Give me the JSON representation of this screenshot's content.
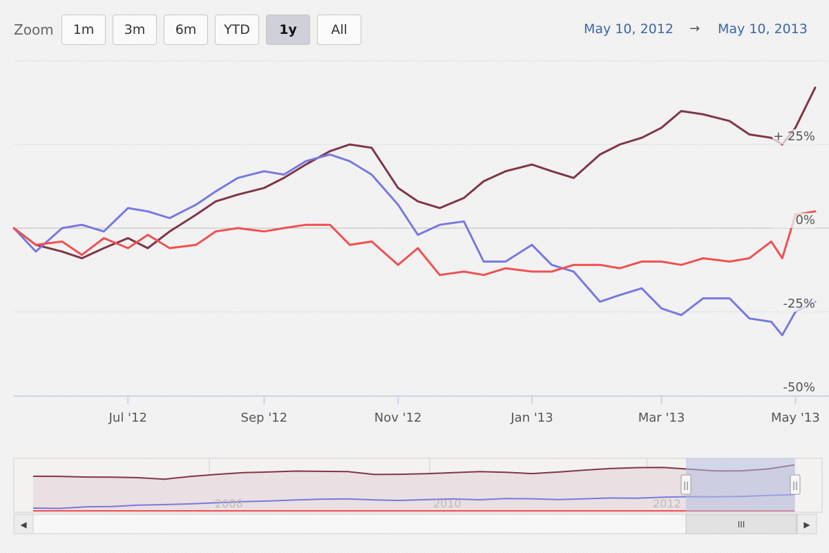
{
  "toolbar": {
    "zoom_label": "Zoom",
    "buttons": [
      "1m",
      "3m",
      "6m",
      "YTD",
      "1y",
      "All"
    ],
    "active": "1y"
  },
  "range": {
    "from": "May 10, 2012",
    "arrow": "→",
    "to": "May 10, 2013"
  },
  "colors": {
    "series_a": "#7f3546",
    "series_b": "#7878e0",
    "series_c": "#f05050",
    "gridline": "#d8d8d8",
    "axis": "#c6d4ec",
    "navigator_mask": "#b6bfe2"
  },
  "chart_data": {
    "type": "line",
    "xlabel": "",
    "ylabel": "",
    "x_range": [
      "2012-05-10",
      "2013-05-10"
    ],
    "ylim": [
      -50,
      50
    ],
    "y_ticks": [
      {
        "value": 25,
        "label": "+ 25%"
      },
      {
        "value": 0,
        "label": "0%"
      },
      {
        "value": -25,
        "label": "-25%"
      },
      {
        "value": -50,
        "label": "-50%"
      }
    ],
    "x_ticks": [
      {
        "date": "2012-07-01",
        "label": "Jul '12"
      },
      {
        "date": "2012-09-01",
        "label": "Sep '12"
      },
      {
        "date": "2012-11-01",
        "label": "Nov '12"
      },
      {
        "date": "2013-01-01",
        "label": "Jan '13"
      },
      {
        "date": "2013-03-01",
        "label": "Mar '13"
      },
      {
        "date": "2013-05-01",
        "label": "May '13"
      }
    ],
    "grid": true,
    "series": [
      {
        "color": "#7f3546",
        "x": [
          "2012-05-10",
          "2012-05-20",
          "2012-06-01",
          "2012-06-10",
          "2012-06-20",
          "2012-07-01",
          "2012-07-10",
          "2012-07-20",
          "2012-08-01",
          "2012-08-10",
          "2012-08-20",
          "2012-09-01",
          "2012-09-10",
          "2012-09-20",
          "2012-10-01",
          "2012-10-10",
          "2012-10-20",
          "2012-11-01",
          "2012-11-10",
          "2012-11-20",
          "2012-12-01",
          "2012-12-10",
          "2012-12-20",
          "2013-01-01",
          "2013-01-10",
          "2013-01-20",
          "2013-02-01",
          "2013-02-10",
          "2013-02-20",
          "2013-03-01",
          "2013-03-10",
          "2013-03-20",
          "2013-04-01",
          "2013-04-10",
          "2013-04-20",
          "2013-04-25",
          "2013-05-01",
          "2013-05-10"
        ],
        "values": [
          0,
          -5,
          -7,
          -9,
          -6,
          -3,
          -6,
          -1,
          4,
          8,
          10,
          12,
          15,
          19,
          23,
          25,
          24,
          12,
          8,
          6,
          9,
          14,
          17,
          19,
          17,
          15,
          22,
          25,
          27,
          30,
          35,
          34,
          32,
          28,
          27,
          25,
          30,
          42
        ]
      },
      {
        "color": "#7878e0",
        "x": [
          "2012-05-10",
          "2012-05-20",
          "2012-06-01",
          "2012-06-10",
          "2012-06-20",
          "2012-07-01",
          "2012-07-10",
          "2012-07-20",
          "2012-08-01",
          "2012-08-10",
          "2012-08-20",
          "2012-09-01",
          "2012-09-10",
          "2012-09-20",
          "2012-10-01",
          "2012-10-10",
          "2012-10-20",
          "2012-11-01",
          "2012-11-10",
          "2012-11-20",
          "2012-12-01",
          "2012-12-10",
          "2012-12-20",
          "2013-01-01",
          "2013-01-10",
          "2013-01-20",
          "2013-02-01",
          "2013-02-10",
          "2013-02-20",
          "2013-03-01",
          "2013-03-10",
          "2013-03-20",
          "2013-04-01",
          "2013-04-10",
          "2013-04-20",
          "2013-04-25",
          "2013-05-01",
          "2013-05-10"
        ],
        "values": [
          0,
          -7,
          0,
          1,
          -1,
          6,
          5,
          3,
          7,
          11,
          15,
          17,
          16,
          20,
          22,
          20,
          16,
          7,
          -2,
          1,
          2,
          -10,
          -10,
          -5,
          -11,
          -13,
          -22,
          -20,
          -18,
          -24,
          -26,
          -21,
          -21,
          -27,
          -28,
          -32,
          -25,
          -22
        ]
      },
      {
        "color": "#f05050",
        "x": [
          "2012-05-10",
          "2012-05-20",
          "2012-06-01",
          "2012-06-10",
          "2012-06-20",
          "2012-07-01",
          "2012-07-10",
          "2012-07-20",
          "2012-08-01",
          "2012-08-10",
          "2012-08-20",
          "2012-09-01",
          "2012-09-10",
          "2012-09-20",
          "2012-10-01",
          "2012-10-10",
          "2012-10-20",
          "2012-11-01",
          "2012-11-10",
          "2012-11-20",
          "2012-12-01",
          "2012-12-10",
          "2012-12-20",
          "2013-01-01",
          "2013-01-10",
          "2013-01-20",
          "2013-02-01",
          "2013-02-10",
          "2013-02-20",
          "2013-03-01",
          "2013-03-10",
          "2013-03-20",
          "2013-04-01",
          "2013-04-10",
          "2013-04-20",
          "2013-04-25",
          "2013-05-01",
          "2013-05-10"
        ],
        "values": [
          0,
          -5,
          -4,
          -8,
          -3,
          -6,
          -2,
          -6,
          -5,
          -1,
          0,
          -1,
          0,
          1,
          1,
          -5,
          -4,
          -11,
          -6,
          -14,
          -13,
          -14,
          -12,
          -13,
          -13,
          -11,
          -11,
          -12,
          -10,
          -10,
          -11,
          -9,
          -10,
          -9,
          -4,
          -9,
          4,
          5
        ]
      }
    ]
  },
  "navigator": {
    "x_labels": [
      "2008",
      "2010",
      "2012"
    ],
    "scroll_left_arrow": "◀",
    "scroll_right_arrow": "▶",
    "scroll_grip": "III",
    "handle_grip": "||"
  }
}
